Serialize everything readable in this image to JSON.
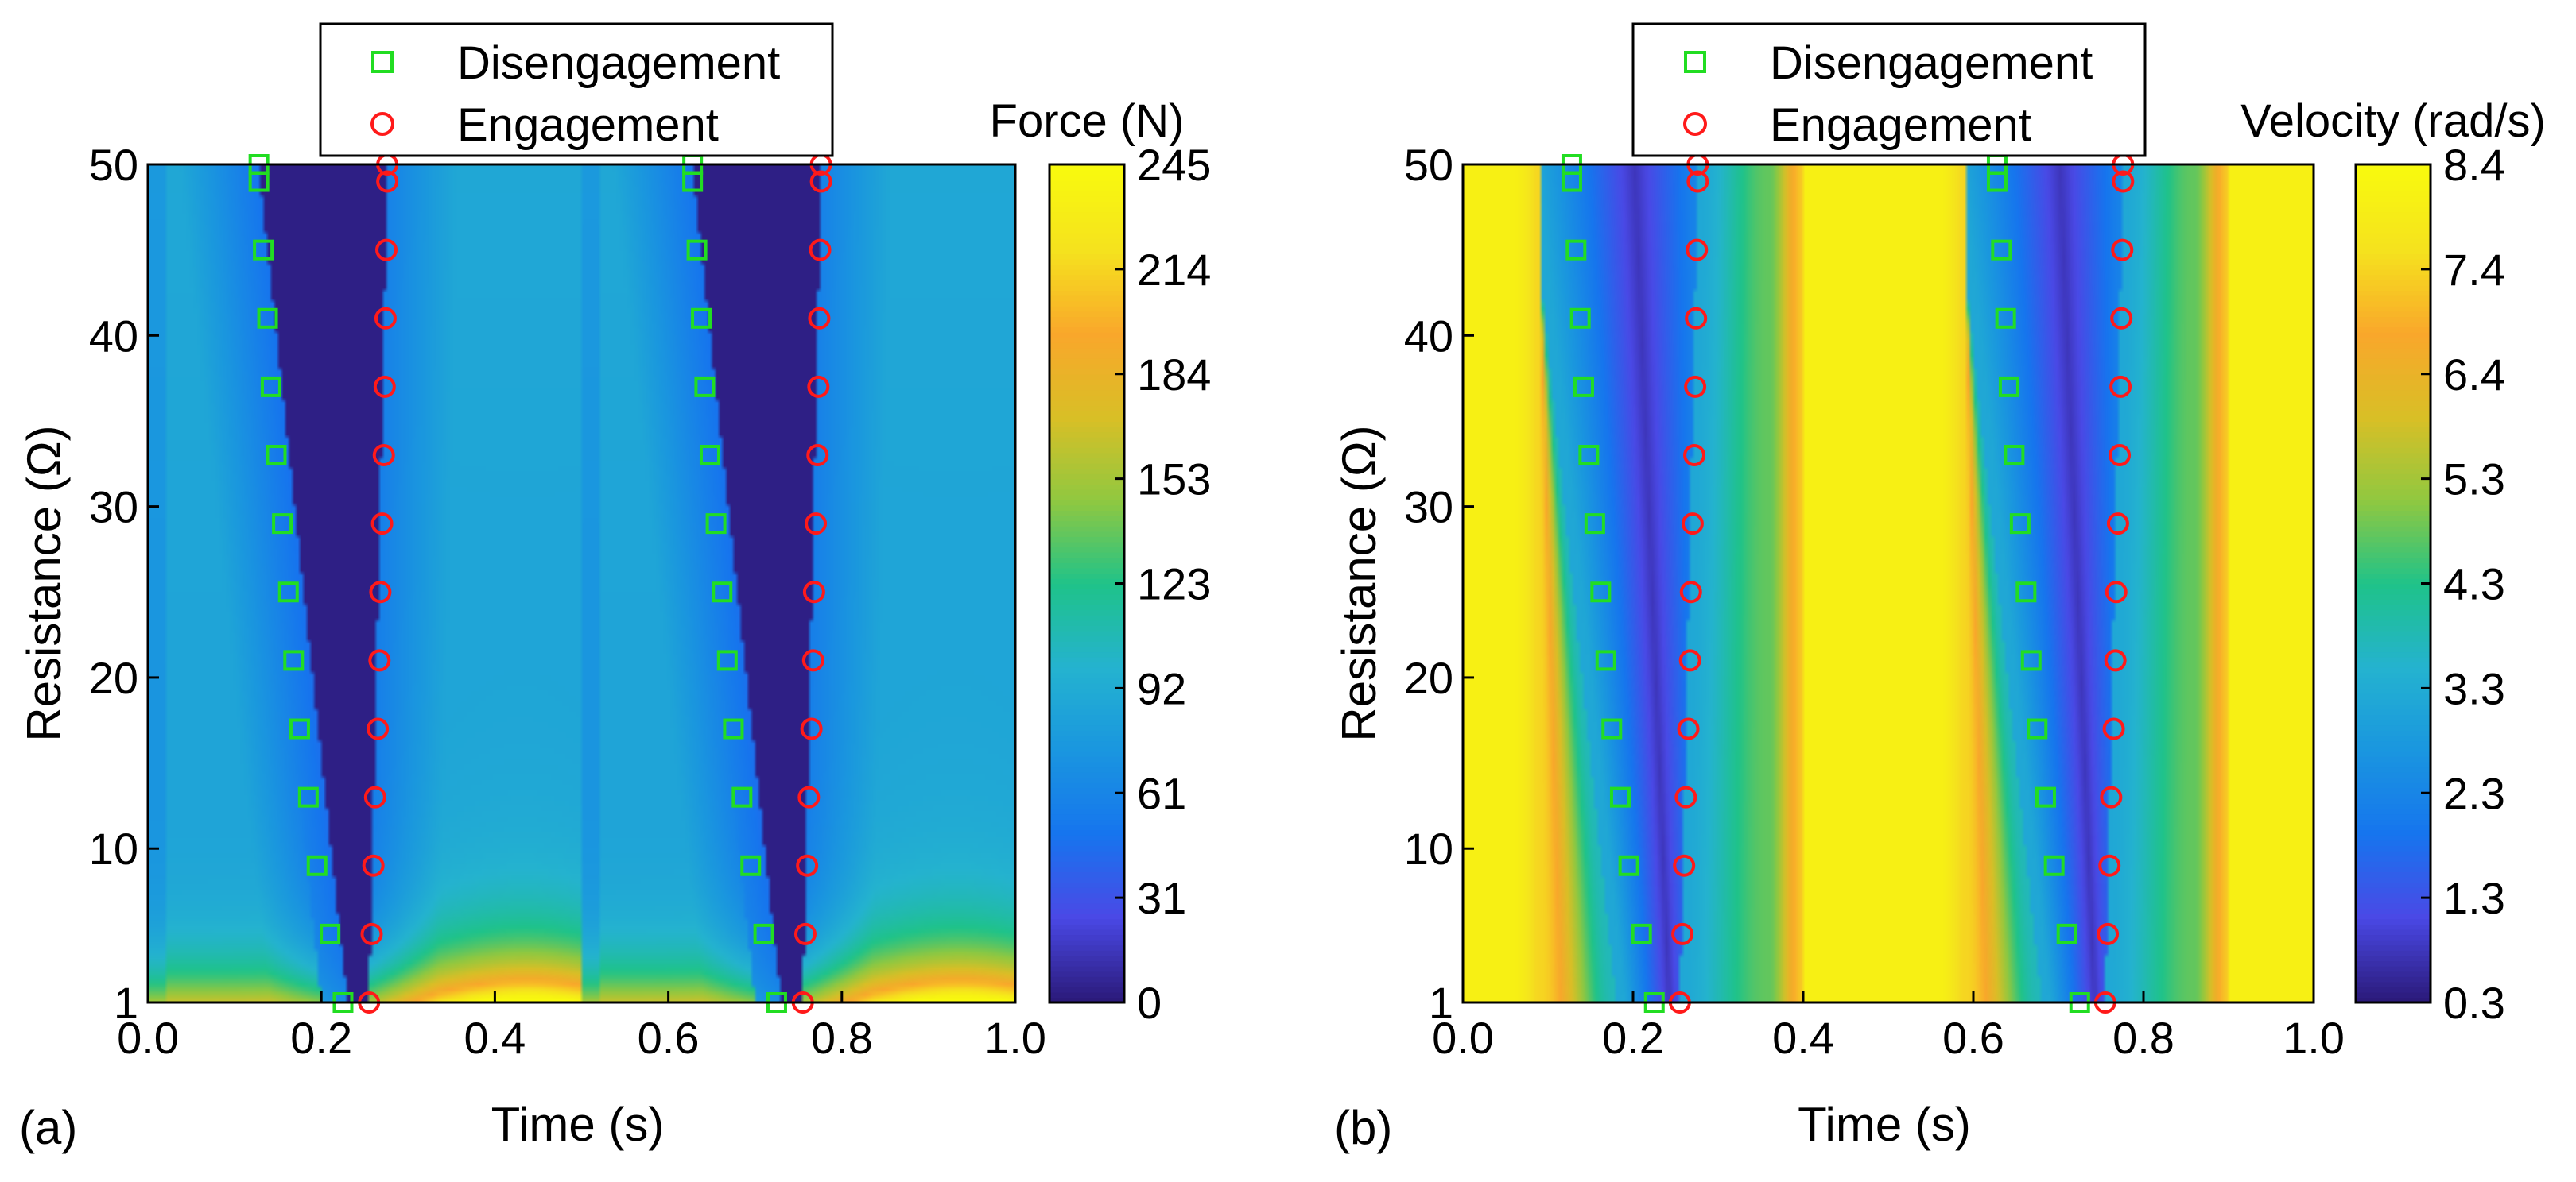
{
  "chart_data": [
    {
      "type": "heatmap",
      "panel_label": "(a)",
      "xlabel": "Time (s)",
      "ylabel": "Resistance (Ω)",
      "colorbar_label": "Force (N)",
      "xlim": [
        0.0,
        1.0
      ],
      "ylim": [
        1,
        50
      ],
      "xticks": [
        "0.0",
        "0.2",
        "0.4",
        "0.6",
        "0.8",
        "1.0"
      ],
      "yticks": [
        "1",
        "10",
        "20",
        "30",
        "40",
        "50"
      ],
      "colorbar_ticks": [
        "0",
        "31",
        "61",
        "92",
        "123",
        "153",
        "184",
        "214",
        "245"
      ],
      "clim": [
        0,
        245
      ],
      "colormap": [
        "#2b1a7a",
        "#4a49e6",
        "#1675ee",
        "#1a96df",
        "#24b3cf",
        "#1fc389",
        "#90c840",
        "#d9bf26",
        "#f9a72b",
        "#f5e21e",
        "#f8fa0e"
      ],
      "legend": {
        "placement": "top",
        "entries": [
          {
            "label": "Disengagement",
            "marker": "square",
            "color": "#22dd22"
          },
          {
            "label": "Engagement",
            "marker": "circle",
            "color": "#ff1a1a"
          }
        ]
      },
      "series": [
        {
          "name": "Disengagement",
          "points": [
            [
              0.225,
              1
            ],
            [
              0.21,
              5
            ],
            [
              0.195,
              9
            ],
            [
              0.185,
              13
            ],
            [
              0.175,
              17
            ],
            [
              0.168,
              21
            ],
            [
              0.162,
              25
            ],
            [
              0.155,
              29
            ],
            [
              0.148,
              33
            ],
            [
              0.142,
              37
            ],
            [
              0.138,
              41
            ],
            [
              0.133,
              45
            ],
            [
              0.128,
              49
            ],
            [
              0.128,
              50
            ],
            [
              0.725,
              1
            ],
            [
              0.71,
              5
            ],
            [
              0.695,
              9
            ],
            [
              0.685,
              13
            ],
            [
              0.675,
              17
            ],
            [
              0.668,
              21
            ],
            [
              0.662,
              25
            ],
            [
              0.655,
              29
            ],
            [
              0.648,
              33
            ],
            [
              0.642,
              37
            ],
            [
              0.638,
              41
            ],
            [
              0.633,
              45
            ],
            [
              0.628,
              49
            ],
            [
              0.628,
              50
            ]
          ]
        },
        {
          "name": "Engagement",
          "points": [
            [
              0.255,
              1
            ],
            [
              0.258,
              5
            ],
            [
              0.26,
              9
            ],
            [
              0.262,
              13
            ],
            [
              0.265,
              17
            ],
            [
              0.267,
              21
            ],
            [
              0.268,
              25
            ],
            [
              0.27,
              29
            ],
            [
              0.272,
              33
            ],
            [
              0.273,
              37
            ],
            [
              0.274,
              41
            ],
            [
              0.275,
              45
            ],
            [
              0.276,
              49
            ],
            [
              0.276,
              50
            ],
            [
              0.755,
              1
            ],
            [
              0.758,
              5
            ],
            [
              0.76,
              9
            ],
            [
              0.762,
              13
            ],
            [
              0.765,
              17
            ],
            [
              0.767,
              21
            ],
            [
              0.768,
              25
            ],
            [
              0.77,
              29
            ],
            [
              0.772,
              33
            ],
            [
              0.773,
              37
            ],
            [
              0.774,
              41
            ],
            [
              0.775,
              45
            ],
            [
              0.776,
              49
            ],
            [
              0.776,
              50
            ]
          ]
        }
      ]
    },
    {
      "type": "heatmap",
      "panel_label": "(b)",
      "xlabel": "Time (s)",
      "ylabel": "Resistance (Ω)",
      "colorbar_label": "Velocity (rad/s)",
      "xlim": [
        0.0,
        1.0
      ],
      "ylim": [
        1,
        50
      ],
      "xticks": [
        "0.0",
        "0.2",
        "0.4",
        "0.6",
        "0.8",
        "1.0"
      ],
      "yticks": [
        "1",
        "10",
        "20",
        "30",
        "40",
        "50"
      ],
      "colorbar_ticks": [
        "0.3",
        "1.3",
        "2.3",
        "3.3",
        "4.3",
        "5.3",
        "6.4",
        "7.4",
        "8.4"
      ],
      "clim": [
        0.3,
        8.4
      ],
      "colormap": [
        "#2b1a7a",
        "#4a49e6",
        "#1675ee",
        "#1a96df",
        "#24b3cf",
        "#1fc389",
        "#90c840",
        "#d9bf26",
        "#f9a72b",
        "#f5e21e",
        "#f8fa0e"
      ],
      "legend": {
        "placement": "top",
        "entries": [
          {
            "label": "Disengagement",
            "marker": "square",
            "color": "#22dd22"
          },
          {
            "label": "Engagement",
            "marker": "circle",
            "color": "#ff1a1a"
          }
        ]
      },
      "series": [
        {
          "name": "Disengagement",
          "points": [
            [
              0.225,
              1
            ],
            [
              0.21,
              5
            ],
            [
              0.195,
              9
            ],
            [
              0.185,
              13
            ],
            [
              0.175,
              17
            ],
            [
              0.168,
              21
            ],
            [
              0.162,
              25
            ],
            [
              0.155,
              29
            ],
            [
              0.148,
              33
            ],
            [
              0.142,
              37
            ],
            [
              0.138,
              41
            ],
            [
              0.133,
              45
            ],
            [
              0.128,
              49
            ],
            [
              0.128,
              50
            ],
            [
              0.725,
              1
            ],
            [
              0.71,
              5
            ],
            [
              0.695,
              9
            ],
            [
              0.685,
              13
            ],
            [
              0.675,
              17
            ],
            [
              0.668,
              21
            ],
            [
              0.662,
              25
            ],
            [
              0.655,
              29
            ],
            [
              0.648,
              33
            ],
            [
              0.642,
              37
            ],
            [
              0.638,
              41
            ],
            [
              0.633,
              45
            ],
            [
              0.628,
              49
            ],
            [
              0.628,
              50
            ]
          ]
        },
        {
          "name": "Engagement",
          "points": [
            [
              0.255,
              1
            ],
            [
              0.258,
              5
            ],
            [
              0.26,
              9
            ],
            [
              0.262,
              13
            ],
            [
              0.265,
              17
            ],
            [
              0.267,
              21
            ],
            [
              0.268,
              25
            ],
            [
              0.27,
              29
            ],
            [
              0.272,
              33
            ],
            [
              0.273,
              37
            ],
            [
              0.274,
              41
            ],
            [
              0.275,
              45
            ],
            [
              0.276,
              49
            ],
            [
              0.276,
              50
            ],
            [
              0.755,
              1
            ],
            [
              0.758,
              5
            ],
            [
              0.76,
              9
            ],
            [
              0.762,
              13
            ],
            [
              0.765,
              17
            ],
            [
              0.767,
              21
            ],
            [
              0.768,
              25
            ],
            [
              0.77,
              29
            ],
            [
              0.772,
              33
            ],
            [
              0.773,
              37
            ],
            [
              0.774,
              41
            ],
            [
              0.775,
              45
            ],
            [
              0.776,
              49
            ],
            [
              0.776,
              50
            ]
          ]
        }
      ]
    }
  ]
}
